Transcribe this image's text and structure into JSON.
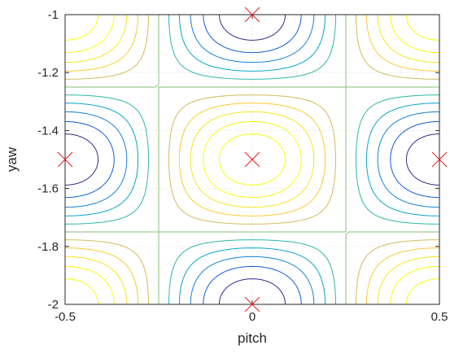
{
  "chart_data": {
    "type": "contour",
    "title": "",
    "xlabel": "pitch",
    "ylabel": "yaw",
    "xlim": [
      -0.5,
      0.5
    ],
    "ylim": [
      -2,
      -1
    ],
    "xticks": [
      -0.5,
      0,
      0.5
    ],
    "xtick_labels": [
      "-0.5",
      "0",
      "0.5"
    ],
    "yticks": [
      -2,
      -1.8,
      -1.6,
      -1.4,
      -1.2,
      -1
    ],
    "ytick_labels": [
      "-2",
      "-1.8",
      "-1.6",
      "-1.4",
      "-1.2",
      "-1"
    ],
    "grid": true,
    "colormap": "parula",
    "contour_levels": [
      -0.85,
      -0.68,
      -0.51,
      -0.34,
      -0.17,
      0.0,
      0.17,
      0.34,
      0.51,
      0.68,
      0.85
    ],
    "level_colors": [
      "#352a87",
      "#0f5cdd",
      "#1481d6",
      "#06a4ca",
      "#2eb7a4",
      "#87bf77",
      "#d1bb59",
      "#fec832",
      "#f5e51f",
      "#f9fb0e",
      "#f9fb0e"
    ],
    "markers": {
      "style": "x",
      "color": "#e41a1c",
      "points": [
        {
          "x": 0,
          "y": -1
        },
        {
          "x": -0.5,
          "y": -1.5
        },
        {
          "x": 0,
          "y": -1.5
        },
        {
          "x": 0.5,
          "y": -1.5
        },
        {
          "x": 0,
          "y": -2
        }
      ]
    }
  }
}
